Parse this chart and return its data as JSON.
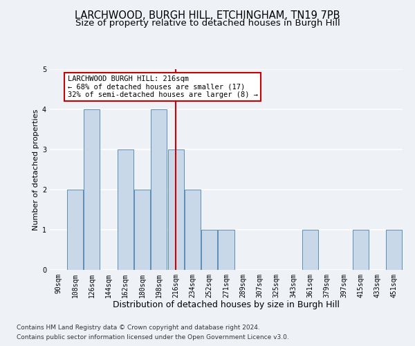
{
  "title1": "LARCHWOOD, BURGH HILL, ETCHINGHAM, TN19 7PB",
  "title2": "Size of property relative to detached houses in Burgh Hill",
  "xlabel": "Distribution of detached houses by size in Burgh Hill",
  "ylabel": "Number of detached properties",
  "bins": [
    "90sqm",
    "108sqm",
    "126sqm",
    "144sqm",
    "162sqm",
    "180sqm",
    "198sqm",
    "216sqm",
    "234sqm",
    "252sqm",
    "271sqm",
    "289sqm",
    "307sqm",
    "325sqm",
    "343sqm",
    "361sqm",
    "379sqm",
    "397sqm",
    "415sqm",
    "433sqm",
    "451sqm"
  ],
  "values": [
    0,
    2,
    4,
    0,
    3,
    2,
    4,
    3,
    2,
    1,
    1,
    0,
    0,
    0,
    0,
    1,
    0,
    0,
    1,
    0,
    1
  ],
  "bar_color": "#c8d8e8",
  "bar_edge_color": "#5b8db8",
  "vline_index": 7,
  "vline_color": "#cc0000",
  "ylim": [
    0,
    5
  ],
  "yticks": [
    0,
    1,
    2,
    3,
    4,
    5
  ],
  "annotation_title": "LARCHWOOD BURGH HILL: 216sqm",
  "annotation_line1": "← 68% of detached houses are smaller (17)",
  "annotation_line2": "32% of semi-detached houses are larger (8) →",
  "annotation_box_color": "#ffffff",
  "annotation_box_edge": "#cc0000",
  "footnote1": "Contains HM Land Registry data © Crown copyright and database right 2024.",
  "footnote2": "Contains public sector information licensed under the Open Government Licence v3.0.",
  "bg_color": "#eef2f7",
  "grid_color": "#ffffff",
  "title1_fontsize": 10.5,
  "title2_fontsize": 9.5,
  "xlabel_fontsize": 9,
  "ylabel_fontsize": 8,
  "tick_fontsize": 7,
  "annot_fontsize": 7.5,
  "footnote_fontsize": 6.5
}
